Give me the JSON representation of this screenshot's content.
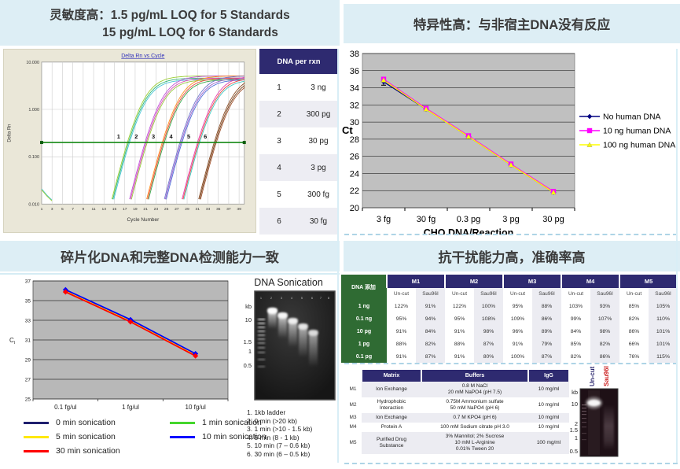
{
  "sensitivity": {
    "header": {
      "line1_zh": "灵敏度高：",
      "line1_en": "1.5 pg/mL LOQ for 5 Standards",
      "line2": "15 pg/mL LOQ for 6 Standards"
    },
    "table": {
      "header": "DNA per rxn",
      "rows": [
        {
          "num": "1",
          "amount": "3 ng"
        },
        {
          "num": "2",
          "amount": "300 pg"
        },
        {
          "num": "3",
          "amount": "30 pg"
        },
        {
          "num": "4",
          "amount": "3 pg"
        },
        {
          "num": "5",
          "amount": "300 fg"
        },
        {
          "num": "6",
          "amount": "30 fg"
        }
      ]
    }
  },
  "specificity": {
    "header": "特异性高：与非宿主DNA没有反应"
  },
  "fragmentation": {
    "header": "碎片化DNA和完整DNA检测能力一致",
    "gel": {
      "title": "DNA Sonication",
      "markers": [
        "kb",
        "10",
        "1.5",
        "1",
        "0.5"
      ],
      "lane_numbers": [
        "1",
        "2",
        "3",
        "4",
        "5",
        "6",
        "7",
        "8"
      ],
      "caption": [
        "1. 1kb ladder",
        "2. 0 min (>20 kb)",
        "3. 1 min (>10 - 1.5 kb)",
        "4. 5 min (8 - 1 kb)",
        "5. 10 min (7 – 0.6 kb)",
        "6. 30 min (6 – 0.5 kb)"
      ]
    }
  },
  "interference": {
    "header": "抗干扰能力高，准确率高",
    "spike_table": {
      "corner": "DNA 添加",
      "matrices": [
        "M1",
        "M2",
        "M3",
        "M4",
        "M5"
      ],
      "sub_columns": [
        "Un-cut",
        "Sau96I"
      ],
      "rows": [
        {
          "label": "1 ng",
          "values": [
            "122%",
            "91%",
            "122%",
            "100%",
            "95%",
            "88%",
            "103%",
            "93%",
            "85%",
            "105%"
          ]
        },
        {
          "label": "0.1 ng",
          "values": [
            "95%",
            "94%",
            "95%",
            "108%",
            "109%",
            "86%",
            "99%",
            "107%",
            "82%",
            "110%"
          ]
        },
        {
          "label": "10 pg",
          "values": [
            "91%",
            "84%",
            "91%",
            "98%",
            "96%",
            "89%",
            "84%",
            "98%",
            "86%",
            "101%"
          ]
        },
        {
          "label": "1 pg",
          "values": [
            "88%",
            "82%",
            "88%",
            "87%",
            "91%",
            "79%",
            "85%",
            "82%",
            "66%",
            "101%"
          ]
        },
        {
          "label": "0.1 pg",
          "values": [
            "91%",
            "87%",
            "91%",
            "80%",
            "100%",
            "87%",
            "82%",
            "86%",
            "76%",
            "115%"
          ]
        }
      ]
    },
    "matrix_table": {
      "headers": [
        "Matrix",
        "Buffers",
        "IgG"
      ],
      "rows": [
        {
          "id": "M1",
          "matrix": "Ion Exchange",
          "buffers": "0.8 M NaCl\n20 mM NaPO4 (pH 7.5)",
          "igg": "10 mg/ml"
        },
        {
          "id": "M2",
          "matrix": "Hydrophobic\nInteraction",
          "buffers": "0.75M Ammonium sulfate\n50 mM NaPO4 (pH 6)",
          "igg": "10 mg/ml"
        },
        {
          "id": "M3",
          "matrix": "Ion Exchange",
          "buffers": "0.7 M KPO4 (pH 6)",
          "igg": "10 mg/ml"
        },
        {
          "id": "M4",
          "matrix": "Protein A",
          "buffers": "100 mM Sodium citrate pH 3.0",
          "igg": "10 mg/ml"
        },
        {
          "id": "M5",
          "matrix": "Purified Drug\nSubstance",
          "buffers": "3% Mannitol; 2% Sucrose\n10 mM L-Arginine\n0.01% Tween 20",
          "igg": "100 mg/ml"
        }
      ]
    },
    "gel": {
      "markers": [
        "kb",
        "10",
        "2",
        "1.5",
        "1",
        "0.5"
      ],
      "lanes": [
        {
          "label": "Un-cut",
          "color": "#2e2a70"
        },
        {
          "label": "Sau96I",
          "color": "#cc2222"
        }
      ]
    }
  },
  "chart_data": [
    {
      "id": "qpcr_amplification",
      "type": "line",
      "title": "Delta Rn vs Cycle",
      "xlabel": "Cycle Number",
      "ylabel": "Delta Rn",
      "y_scale": "log",
      "ylim": [
        0.01,
        10
      ],
      "y_ticks": [
        "10.000",
        "1.000",
        "0.100",
        "0.010"
      ],
      "x_ticks": [
        1,
        3,
        5,
        7,
        9,
        11,
        13,
        15,
        17,
        19,
        21,
        23,
        25,
        27,
        29,
        31,
        33,
        35,
        37,
        39
      ],
      "xlim": [
        1,
        40
      ],
      "threshold": 0.2,
      "threshold_color": "#168a16",
      "groups": [
        {
          "label": "1",
          "dna_per_rxn": "3 ng",
          "ct": 17.2,
          "colors": [
            "#9acd32",
            "#2eb872",
            "#49c5d6"
          ]
        },
        {
          "label": "2",
          "dna_per_rxn": "300 pg",
          "ct": 20.6,
          "colors": [
            "#bf4fd9",
            "#d94fb3",
            "#97c93d"
          ]
        },
        {
          "label": "3",
          "dna_per_rxn": "30 pg",
          "ct": 23.9,
          "colors": [
            "#ff8c1a",
            "#e8453c",
            "#37a84c"
          ]
        },
        {
          "label": "4",
          "dna_per_rxn": "3 pg",
          "ct": 27.3,
          "colors": [
            "#6f74cf",
            "#9a5fc9",
            "#4f6fd9"
          ]
        },
        {
          "label": "5",
          "dna_per_rxn": "300 fg",
          "ct": 30.7,
          "colors": [
            "#e83caf",
            "#e8443c",
            "#3cc8c0"
          ]
        },
        {
          "label": "6",
          "dna_per_rxn": "30 fg",
          "ct": 33.9,
          "colors": [
            "#8a4a22",
            "#6e3b14",
            "#a0522d"
          ]
        }
      ],
      "artifact": {
        "points": [
          [
            1,
            0.021
          ],
          [
            2,
            0.0155
          ],
          [
            3,
            0.0122
          ]
        ],
        "colors": [
          "#49c5d6",
          "#9acd32"
        ]
      }
    },
    {
      "id": "specificity",
      "type": "line",
      "categories": [
        "3 fg",
        "30 fg",
        "0.3 pg",
        "3 pg",
        "30 pg"
      ],
      "series": [
        {
          "name": "No human DNA",
          "color": "#000080",
          "marker": "diamond",
          "values": [
            34.7,
            31.5,
            28.3,
            25.0,
            21.8
          ]
        },
        {
          "name": "10 ng human DNA",
          "color": "#ff00ff",
          "marker": "square",
          "values": [
            35.0,
            31.6,
            28.4,
            25.1,
            21.9
          ]
        },
        {
          "name": "100 ng human DNA",
          "color": "#ffff00",
          "marker": "triangle",
          "values": [
            34.9,
            31.5,
            28.3,
            25.0,
            21.8
          ]
        }
      ],
      "error_bar": {
        "category_index": 0,
        "low": 34.3,
        "high": 35.2
      },
      "ylabel": "Ct",
      "xlabel": "CHO DNA/Reaction",
      "ylim": [
        20,
        38
      ],
      "y_tick_step": 2,
      "grid": true,
      "legend_position": "right"
    },
    {
      "id": "fragmentation",
      "type": "line",
      "categories": [
        "0.1 fg/ul",
        "1 fg/ul",
        "10 fg/ul"
      ],
      "series": [
        {
          "name": "0 min sonication",
          "color": "#1f1f6e",
          "values": [
            36.0,
            32.95,
            29.5
          ]
        },
        {
          "name": "1 min sonication",
          "color": "#44d62c",
          "values": [
            36.04,
            33.0,
            29.54
          ]
        },
        {
          "name": "5 min sonication",
          "color": "#ffe800",
          "values": [
            35.96,
            32.92,
            29.46
          ]
        },
        {
          "name": "10 min sonication",
          "color": "#0000ff",
          "values": [
            36.1,
            33.06,
            29.6
          ]
        },
        {
          "name": "30 min sonication",
          "color": "#ff0000",
          "values": [
            35.88,
            32.84,
            29.38
          ]
        }
      ],
      "ylabel": "Ct",
      "ylim": [
        25,
        37
      ],
      "y_tick_step": 2,
      "grid": true,
      "legend_position": "below"
    }
  ]
}
